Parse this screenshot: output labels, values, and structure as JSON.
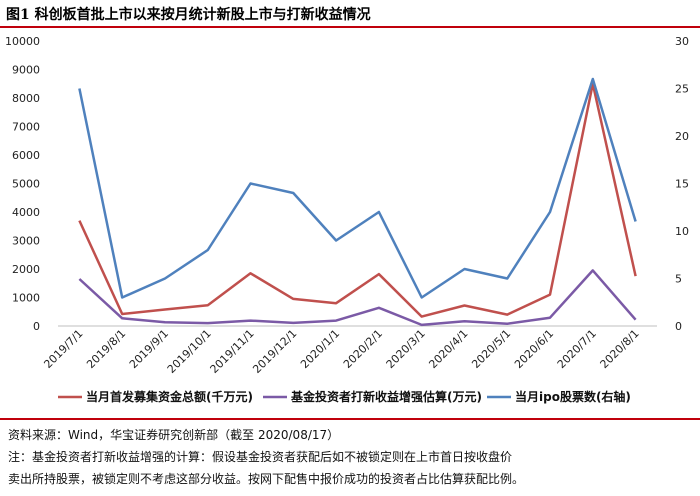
{
  "figure_title": "图1 科创板首批上市以来按月统计新股上市与打新收益情况",
  "colors": {
    "rule": "#c0000c",
    "first_day_total": "#c0504d",
    "fund_gain": "#7b5aa6",
    "ipo_count": "#4f81bd"
  },
  "chart_data": {
    "type": "line",
    "categories": [
      "2019/7/1",
      "2019/8/1",
      "2019/9/1",
      "2019/10/1",
      "2019/11/1",
      "2019/12/1",
      "2020/1/1",
      "2020/2/1",
      "2020/3/1",
      "2020/4/1",
      "2020/5/1",
      "2020/6/1",
      "2020/7/1",
      "2020/8/1"
    ],
    "ylim": [
      0,
      10000
    ],
    "yticks": [
      "0",
      "1000",
      "2000",
      "3000",
      "4000",
      "5000",
      "6000",
      "7000",
      "8000",
      "9000",
      "10000"
    ],
    "y2lim": [
      0,
      30
    ],
    "y2ticks": [
      "0",
      "5",
      "10",
      "15",
      "20",
      "25",
      "30"
    ],
    "grid": false,
    "legend_position": "bottom",
    "series": [
      {
        "name": "当月首发募集资金总额(千万元)",
        "axis": "left",
        "values": [
          3700,
          420,
          580,
          730,
          1850,
          950,
          800,
          1820,
          330,
          720,
          400,
          1100,
          8500,
          1750
        ]
      },
      {
        "name": "基金投资者打新收益增强估算(万元)",
        "axis": "left",
        "values": [
          1650,
          270,
          130,
          100,
          190,
          110,
          190,
          640,
          40,
          170,
          80,
          290,
          1950,
          220
        ]
      },
      {
        "name": "当月ipo股票数(右轴)",
        "axis": "right",
        "values": [
          25,
          3,
          5,
          8,
          15,
          14,
          9,
          12,
          3,
          6,
          5,
          12,
          26,
          11
        ]
      }
    ]
  },
  "notes": {
    "source": "资料来源：Wind，华宝证券研究创新部（截至 2020/08/17）",
    "note_line1": "注：基金投资者打新收益增强的计算：假设基金投资者获配后如不被锁定则在上市首日按收盘价",
    "note_line2": "卖出所持股票，被锁定则不考虑这部分收益。按网下配售中报价成功的投资者占比估算获配比例。"
  }
}
